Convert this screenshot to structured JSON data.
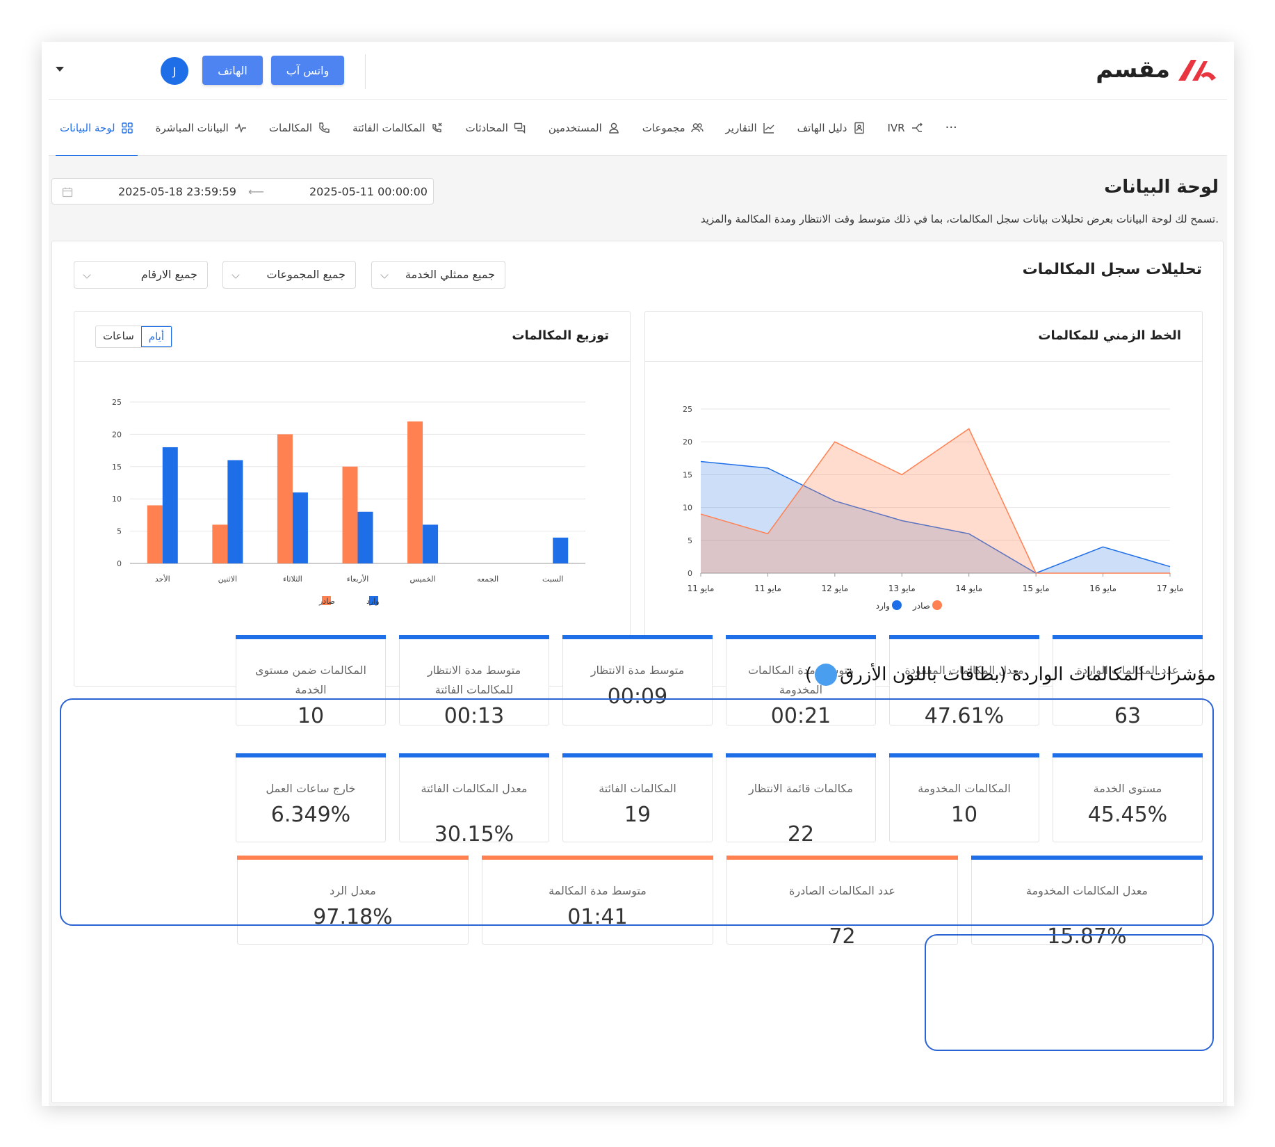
{
  "header": {
    "logo_text": "مقسم",
    "whatsapp_button": "واتس آب",
    "phone_button": "الهاتف",
    "avatar_initial": "J"
  },
  "nav": {
    "items": [
      {
        "label": "لوحة البيانات",
        "icon": "grid-icon",
        "active": true
      },
      {
        "label": "البيانات المباشرة",
        "icon": "activity-icon"
      },
      {
        "label": "المكالمات",
        "icon": "phone-icon"
      },
      {
        "label": "المكالمات الفائتة",
        "icon": "missed-call-icon"
      },
      {
        "label": "المحادثات",
        "icon": "chat-icon"
      },
      {
        "label": "المستخدمين",
        "icon": "user-icon"
      },
      {
        "label": "مجموعات",
        "icon": "users-icon"
      },
      {
        "label": "التقارير",
        "icon": "chart-line-icon"
      },
      {
        "label": "دليل الهاتف",
        "icon": "contacts-icon"
      },
      {
        "label": "IVR",
        "icon": "ivr-icon"
      }
    ],
    "more": "···"
  },
  "page": {
    "title": "لوحة البيانات",
    "description": "تسمح لك لوحة البيانات بعرض تحليلات بيانات سجل المكالمات، بما في ذلك متوسط وقت الانتظار ومدة المكالمة والمزيد.",
    "date_start": "2025-05-11 00:00:00",
    "date_end": "2025-05-18 23:59:59"
  },
  "analytics": {
    "title": "تحليلات سجل المكالمات",
    "filters": {
      "agents": "جميع ممثلي الخدمة",
      "groups": "جميع المجموعات",
      "numbers": "جميع الارقام"
    }
  },
  "timeline": {
    "title": "الخط الزمني للمكالمات"
  },
  "distribution": {
    "title": "توزيع المكالمات",
    "toggle_days": "أيام",
    "toggle_hours": "ساعات"
  },
  "chart_data": [
    {
      "type": "area",
      "categories": [
        "مايو 11",
        "مايو 11",
        "مايو 12",
        "مايو 13",
        "مايو 14",
        "مايو 15",
        "مايو 16",
        "مايو 17"
      ],
      "ylim": [
        0,
        25
      ],
      "yticks": [
        0,
        5,
        10,
        15,
        20,
        25
      ],
      "grid": true,
      "legend": "bottom",
      "series": [
        {
          "name": "وارد",
          "color": "#1e6ee8",
          "values": [
            17,
            16,
            11,
            8,
            6,
            0,
            4,
            1
          ]
        },
        {
          "name": "صادر",
          "color": "#ff8050",
          "values": [
            9,
            6,
            20,
            15,
            22,
            0,
            0,
            0
          ]
        }
      ]
    },
    {
      "type": "bar",
      "categories": [
        "الأحد",
        "الاثنين",
        "الثلاثاء",
        "الأربعاء",
        "الخميس",
        "الجمعه",
        "السبت"
      ],
      "ylim": [
        0,
        25
      ],
      "yticks": [
        0,
        5,
        10,
        15,
        20,
        25
      ],
      "grid": true,
      "legend": "bottom",
      "series": [
        {
          "name": "صادر",
          "color": "#ff8050",
          "values": [
            9,
            6,
            20,
            15,
            22,
            0,
            0
          ]
        },
        {
          "name": "وارد",
          "color": "#1e6ee8",
          "values": [
            18,
            16,
            11,
            8,
            6,
            0,
            4
          ]
        }
      ]
    }
  ],
  "annotation": {
    "text": "مؤشرات المكالمات الواردة (بطاقات باللون الأزرق",
    "close": ")"
  },
  "incoming_row1": [
    {
      "label": "عدد المكالمات الواردة",
      "value": "63"
    },
    {
      "label": "معدل المكالمات المفقودة",
      "value": "47.61%"
    },
    {
      "label": "متوسط مدة المكالمات المخدومة",
      "value": "00:21"
    },
    {
      "label": "متوسط مدة الانتظار",
      "value": "00:09"
    },
    {
      "label": "متوسط مدة الانتظار للمكالمات الفائتة",
      "value": "00:13"
    },
    {
      "label": "المكالمات ضمن مستوى الخدمة",
      "value": "10"
    }
  ],
  "incoming_row2": [
    {
      "label": "مستوى الخدمة",
      "value": "45.45%"
    },
    {
      "label": "المكالمات المخدومة",
      "value": "10"
    },
    {
      "label": "مكالمات قائمة الانتظار",
      "value": "22"
    },
    {
      "label": "المكالمات الفائتة",
      "value": "19"
    },
    {
      "label": "معدل المكالمات الفائتة",
      "value": "30.15%"
    },
    {
      "label": "خارج ساعات العمل",
      "value": "6.349%"
    }
  ],
  "row3": [
    {
      "label": "معدل المكالمات المخدومة",
      "value": "15.87%",
      "color": "#1e6ee8"
    },
    {
      "label": "عدد المكالمات الصادرة",
      "value": "72",
      "color": "#ff8050"
    },
    {
      "label": "متوسط مدة المكالمة",
      "value": "01:41",
      "color": "#ff8050"
    },
    {
      "label": "معدل الرد",
      "value": "97.18%",
      "color": "#ff8050"
    }
  ]
}
